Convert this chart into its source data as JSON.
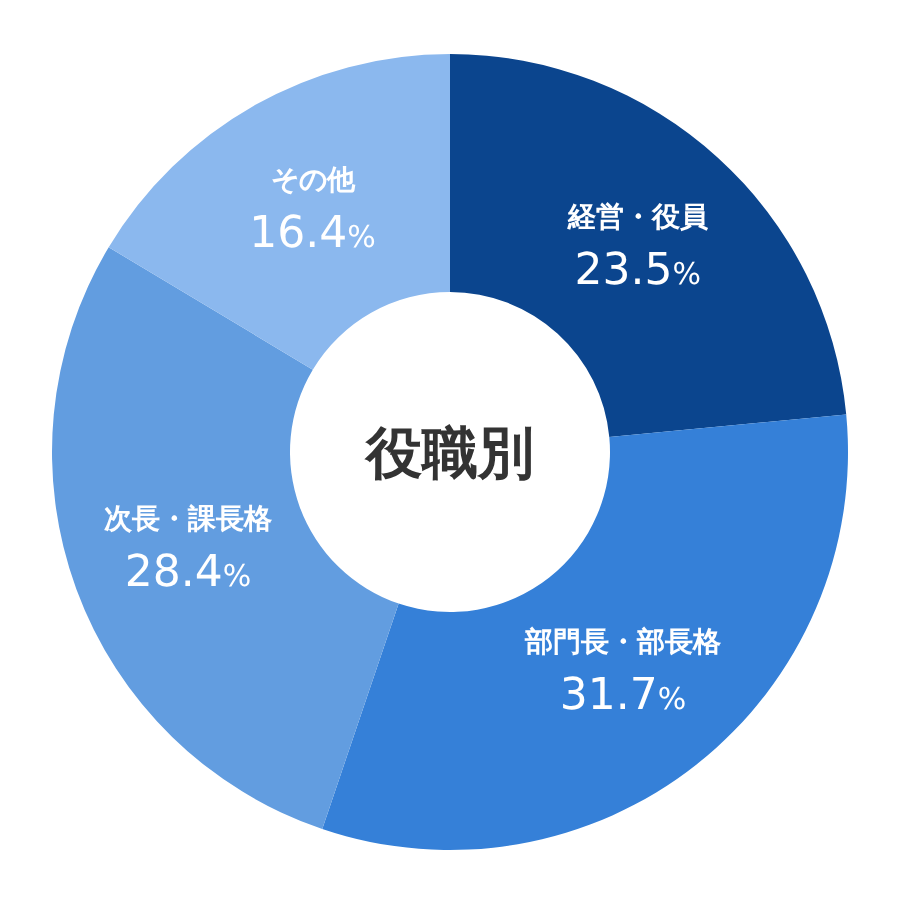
{
  "chart_data": {
    "type": "donut",
    "title": "役職別",
    "categories": [
      "経営・役員",
      "部門長・部長格",
      "次長・課長格",
      "その他"
    ],
    "values": [
      23.5,
      31.7,
      28.4,
      16.4
    ],
    "colors": [
      "#0b458e",
      "#3580d8",
      "#629de0",
      "#8bb8ee"
    ],
    "value_labels": [
      "23.5%",
      "31.7%",
      "28.4%",
      "16.4%"
    ]
  }
}
